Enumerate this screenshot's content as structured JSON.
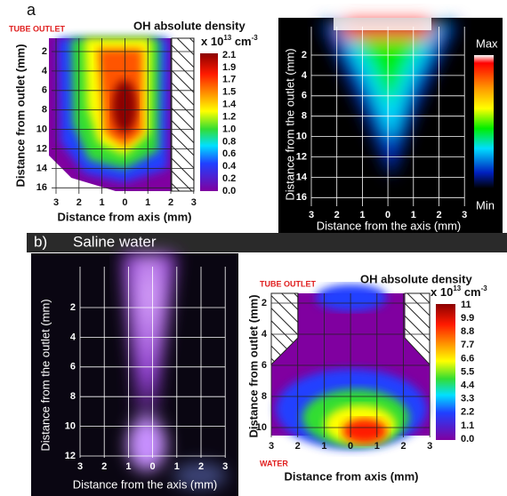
{
  "panel_a": {
    "label": "a",
    "left": {
      "note": "TUBE OUTLET",
      "title": "OH absolute density",
      "unit": {
        "prefix": "x 10",
        "exp": "13",
        "suffix": " cm",
        "suffix_exp": "-3"
      },
      "y_label": "Distance from outlet (mm)",
      "y_ticks": [
        "2",
        "4",
        "6",
        "8",
        "10",
        "12",
        "14",
        "16"
      ],
      "x_label": "Distance from axis (mm)",
      "x_ticks": [
        "3",
        "2",
        "1",
        "0",
        "1",
        "2",
        "3"
      ],
      "colorbar_ticks": [
        "2.1",
        "1.9",
        "1.7",
        "1.5",
        "1.4",
        "1.2",
        "1.0",
        "0.8",
        "0.6",
        "0.4",
        "0.2",
        "0.0"
      ]
    },
    "right": {
      "y_label": "Distance from the outlet (mm)",
      "y_ticks": [
        "2",
        "4",
        "6",
        "8",
        "10",
        "12",
        "14",
        "16"
      ],
      "x_label": "Distance from the axis (mm)",
      "x_ticks": [
        "3",
        "2",
        "1",
        "0",
        "1",
        "2",
        "3"
      ],
      "colorbar_max": "Max",
      "colorbar_min": "Min"
    }
  },
  "panel_b": {
    "label": "b)",
    "subtitle": "Saline water",
    "left": {
      "y_label": "Distance from the outlet (mm)",
      "y_ticks": [
        "2",
        "4",
        "6",
        "8",
        "10",
        "12"
      ],
      "x_label": "Distance from the axis (mm)",
      "x_ticks": [
        "3",
        "2",
        "1",
        "0",
        "1",
        "2",
        "3"
      ]
    },
    "right": {
      "note_top": "TUBE OUTLET",
      "note_bottom": "WATER",
      "title": "OH absolute density",
      "unit": {
        "prefix": "x 10",
        "exp": "13",
        "suffix": " cm",
        "suffix_exp": "-3"
      },
      "y_label": "Distance from outlet (mm)",
      "y_ticks": [
        "2",
        "4",
        "6",
        "8",
        "10"
      ],
      "x_label": "Distance from axis (mm)",
      "x_ticks": [
        "3",
        "2",
        "1",
        "0",
        "1",
        "2",
        "3"
      ],
      "colorbar_ticks": [
        "11",
        "9.9",
        "8.8",
        "7.7",
        "6.6",
        "5.5",
        "4.4",
        "3.3",
        "2.2",
        "1.1",
        "0.0"
      ]
    }
  }
}
